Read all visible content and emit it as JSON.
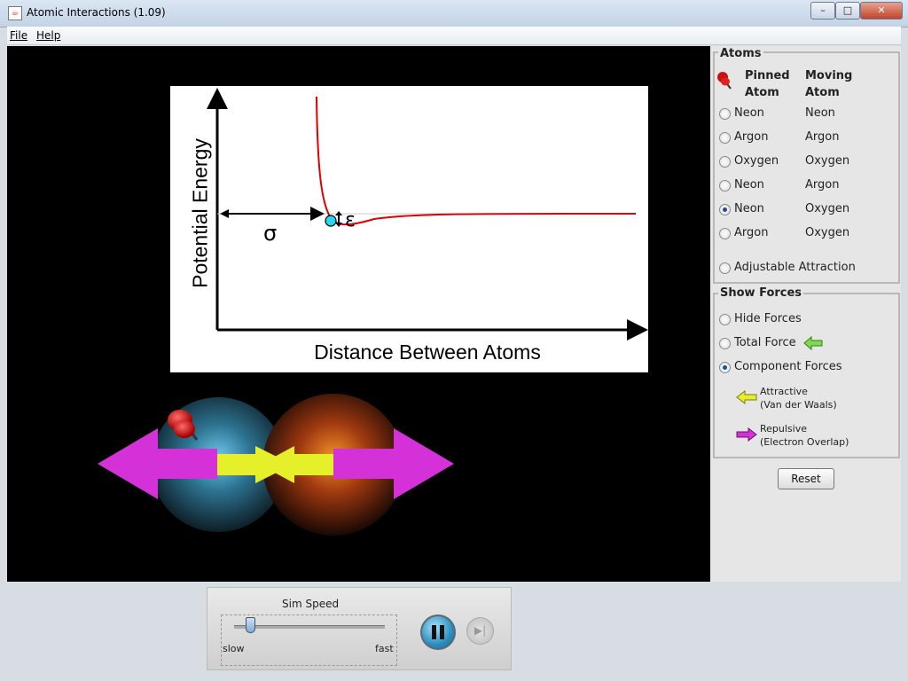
{
  "window": {
    "title": "Atomic Interactions (1.09)",
    "app_icon": "java-icon"
  },
  "menu": {
    "file": "File",
    "help": "Help"
  },
  "graph": {
    "y_label": "Potential Energy",
    "x_label": "Distance Between Atoms",
    "sigma_label": "σ",
    "epsilon_label": "ε"
  },
  "atoms_panel": {
    "title": "Atoms",
    "col_pinned_1": "Pinned",
    "col_pinned_2": "Atom",
    "col_moving_1": "Moving",
    "col_moving_2": "Atom",
    "options": [
      {
        "pinned": "Neon",
        "moving": "Neon",
        "checked": false
      },
      {
        "pinned": "Argon",
        "moving": "Argon",
        "checked": false
      },
      {
        "pinned": "Oxygen",
        "moving": "Oxygen",
        "checked": false
      },
      {
        "pinned": "Neon",
        "moving": "Argon",
        "checked": false
      },
      {
        "pinned": "Neon",
        "moving": "Oxygen",
        "checked": true
      },
      {
        "pinned": "Argon",
        "moving": "Oxygen",
        "checked": false
      }
    ],
    "adjustable": "Adjustable Attraction"
  },
  "forces_panel": {
    "title": "Show Forces",
    "hide": "Hide Forces",
    "total": "Total Force",
    "component": "Component Forces",
    "attractive_1": "Attractive",
    "attractive_2": "(Van der Waals)",
    "repulsive_1": "Repulsive",
    "repulsive_2": "(Electron Overlap)",
    "selected": "component"
  },
  "reset_label": "Reset",
  "sim_speed": {
    "title": "Sim Speed",
    "slow": "slow",
    "fast": "fast",
    "value": 0.1
  },
  "colors": {
    "curve": "#e00000",
    "attractive": "#e6f02a",
    "repulsive": "#d431d8",
    "total": "#7cdd4a"
  }
}
